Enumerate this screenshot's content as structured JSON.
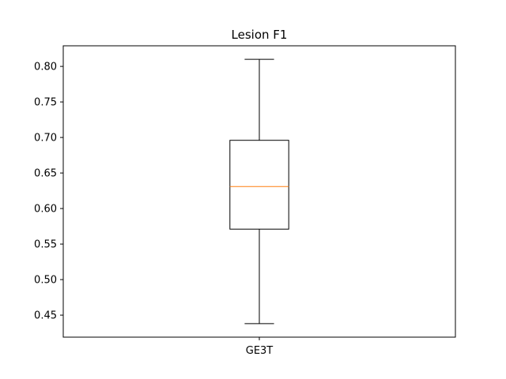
{
  "chart_data": {
    "type": "box",
    "title": "Lesion F1",
    "xlabel": "",
    "ylabel": "",
    "categories": [
      "GE3T"
    ],
    "boxes": [
      {
        "label": "GE3T",
        "whisker_low": 0.438,
        "q1": 0.571,
        "median": 0.631,
        "q3": 0.696,
        "whisker_high": 0.81
      }
    ],
    "ylim": [
      0.419,
      0.829
    ],
    "yticks": [
      0.45,
      0.5,
      0.55,
      0.6,
      0.65,
      0.7,
      0.75,
      0.8
    ],
    "ytick_labels": [
      "0.45",
      "0.50",
      "0.55",
      "0.60",
      "0.65",
      "0.70",
      "0.75",
      "0.80"
    ],
    "grid": false,
    "colors": {
      "box": "#000000",
      "median": "#ff7f0e",
      "axes": "#000000"
    }
  }
}
